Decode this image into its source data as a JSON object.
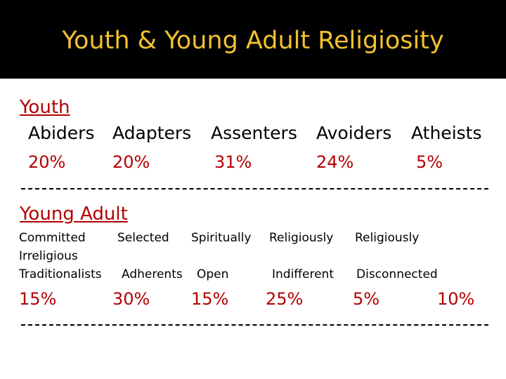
{
  "title": "Youth & Young Adult Religiosity",
  "colors": {
    "header_bg": "#000000",
    "title": "#f2c12e",
    "section_label": "#b30000",
    "text": "#000000"
  },
  "youth": {
    "label": "Youth",
    "categories": [
      "Abiders",
      "Adapters",
      "Assenters",
      "Avoiders",
      "Atheists"
    ],
    "percentages": [
      "20%",
      "20%",
      "31%",
      "24%",
      "5%"
    ]
  },
  "young_adult": {
    "label": "Young Adult",
    "row1": [
      "Committed",
      "Selected",
      "Spiritually",
      "Religiously",
      "Religiously"
    ],
    "row2": [
      "Irreligious"
    ],
    "row3": [
      "Traditionalists",
      "Adherents",
      "Open",
      "Indifferent",
      "Disconnected"
    ],
    "percentages": [
      "15%",
      "30%",
      "15%",
      "25%",
      "5%",
      "10%"
    ]
  }
}
